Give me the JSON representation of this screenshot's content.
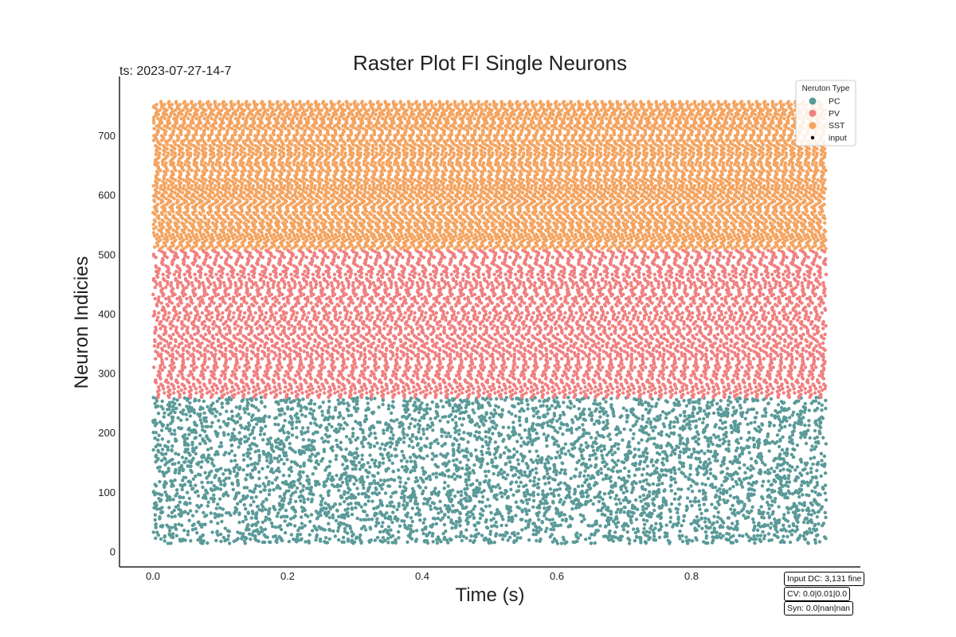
{
  "chart_data": {
    "type": "scatter",
    "title": "Raster Plot FI Single Neurons",
    "subtitle": "ts: 2023-07-27-14-7",
    "xlabel": "Time (s)",
    "ylabel": "Neuron Indicies",
    "xlim": [
      -0.05,
      1.05
    ],
    "ylim": [
      -25,
      785
    ],
    "xticks": [
      0.0,
      0.2,
      0.4,
      0.6,
      0.8
    ],
    "xtick_labels": [
      "0.0",
      "0.2",
      "0.4",
      "0.6",
      "0.8"
    ],
    "yticks": [
      0,
      100,
      200,
      300,
      400,
      500,
      600,
      700
    ],
    "ytick_labels": [
      "0",
      "100",
      "200",
      "300",
      "400",
      "500",
      "600",
      "700"
    ],
    "grid": false,
    "legend": {
      "title": "Neruton Type",
      "placement": "top-right",
      "entries": [
        {
          "label": "PC",
          "color": "#5a9a98"
        },
        {
          "label": "PV",
          "color": "#f08080"
        },
        {
          "label": "SST",
          "color": "#f4a460"
        },
        {
          "label": "input",
          "color": "#000000"
        }
      ]
    },
    "series": [
      {
        "name": "PC",
        "color": "#5a9a98",
        "neuron_range": [
          14,
          260
        ],
        "time_range": [
          0.0,
          1.0
        ],
        "pattern": "irregular",
        "spike_count_approx": 5000
      },
      {
        "name": "PV",
        "color": "#f08080",
        "neuron_range": [
          260,
          510
        ],
        "time_range": [
          0.0,
          1.0
        ],
        "pattern": "regular",
        "spike_count_approx": 6500
      },
      {
        "name": "SST",
        "color": "#f4a460",
        "neuron_range": [
          510,
          760
        ],
        "time_range": [
          0.0,
          1.0
        ],
        "pattern": "regular dense",
        "spike_count_approx": 9000
      },
      {
        "name": "input",
        "color": "#000000",
        "neuron_range": [],
        "time_range": [],
        "pattern": "none",
        "spike_count_approx": 0
      }
    ],
    "annotations": [
      "Input DC: 3,131 fine",
      "CV: 0.0|0.01|0.0",
      "Syn: 0.0|nan|nan"
    ]
  }
}
